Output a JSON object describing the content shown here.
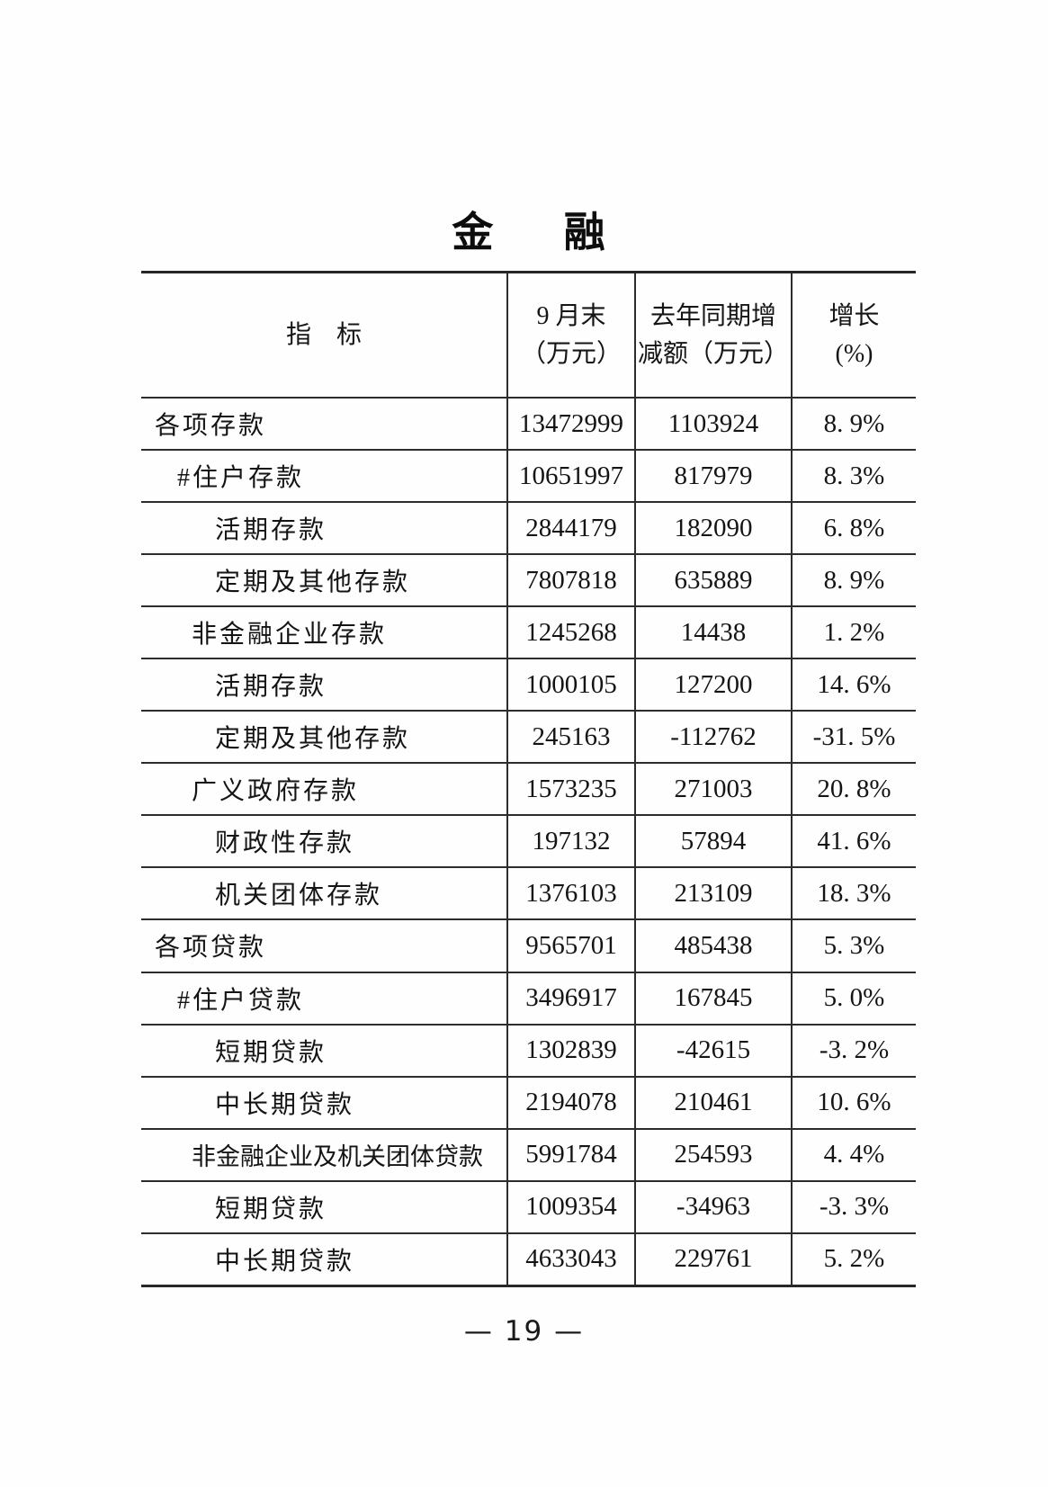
{
  "page": {
    "title": "金融",
    "page_number": "— 19 —"
  },
  "table": {
    "headers": {
      "indicator": "指标",
      "value_col": [
        "9 月末",
        "（万元）"
      ],
      "change_col": [
        "去年同期增",
        "减额（万元）"
      ],
      "growth_col": [
        "增长",
        "(%)"
      ]
    },
    "rows": [
      {
        "label": "各项存款",
        "indent": 0,
        "value": "13472999",
        "change": "1103924",
        "growth": "8. 9%"
      },
      {
        "label": "#住户存款",
        "indent": 1,
        "value": "10651997",
        "change": "817979",
        "growth": "8. 3%"
      },
      {
        "label": "活期存款",
        "indent": 3,
        "value": "2844179",
        "change": "182090",
        "growth": "6. 8%"
      },
      {
        "label": "定期及其他存款",
        "indent": 3,
        "value": "7807818",
        "change": "635889",
        "growth": "8. 9%"
      },
      {
        "label": "非金融企业存款",
        "indent": 2,
        "value": "1245268",
        "change": "14438",
        "growth": "1. 2%"
      },
      {
        "label": "活期存款",
        "indent": 3,
        "value": "1000105",
        "change": "127200",
        "growth": "14. 6%"
      },
      {
        "label": "定期及其他存款",
        "indent": 3,
        "value": "245163",
        "change": "-112762",
        "growth": "-31. 5%"
      },
      {
        "label": "广义政府存款",
        "indent": 2,
        "value": "1573235",
        "change": "271003",
        "growth": "20. 8%"
      },
      {
        "label": "财政性存款",
        "indent": 3,
        "value": "197132",
        "change": "57894",
        "growth": "41. 6%"
      },
      {
        "label": "机关团体存款",
        "indent": 3,
        "value": "1376103",
        "change": "213109",
        "growth": "18. 3%"
      },
      {
        "label": "各项贷款",
        "indent": 0,
        "value": "9565701",
        "change": "485438",
        "growth": "5. 3%"
      },
      {
        "label": "#住户贷款",
        "indent": 1,
        "value": "3496917",
        "change": "167845",
        "growth": "5. 0%"
      },
      {
        "label": "短期贷款",
        "indent": 3,
        "value": "1302839",
        "change": "-42615",
        "growth": "-3. 2%"
      },
      {
        "label": "中长期贷款",
        "indent": 3,
        "value": "2194078",
        "change": "210461",
        "growth": "10. 6%"
      },
      {
        "label": "非金融企业及机关团体贷款",
        "indent": 2,
        "value": "5991784",
        "change": "254593",
        "growth": "4. 4%"
      },
      {
        "label": "短期贷款",
        "indent": 3,
        "value": "1009354",
        "change": "-34963",
        "growth": "-3. 3%"
      },
      {
        "label": "中长期贷款",
        "indent": 3,
        "value": "4633043",
        "change": "229761",
        "growth": "5. 2%"
      }
    ]
  }
}
